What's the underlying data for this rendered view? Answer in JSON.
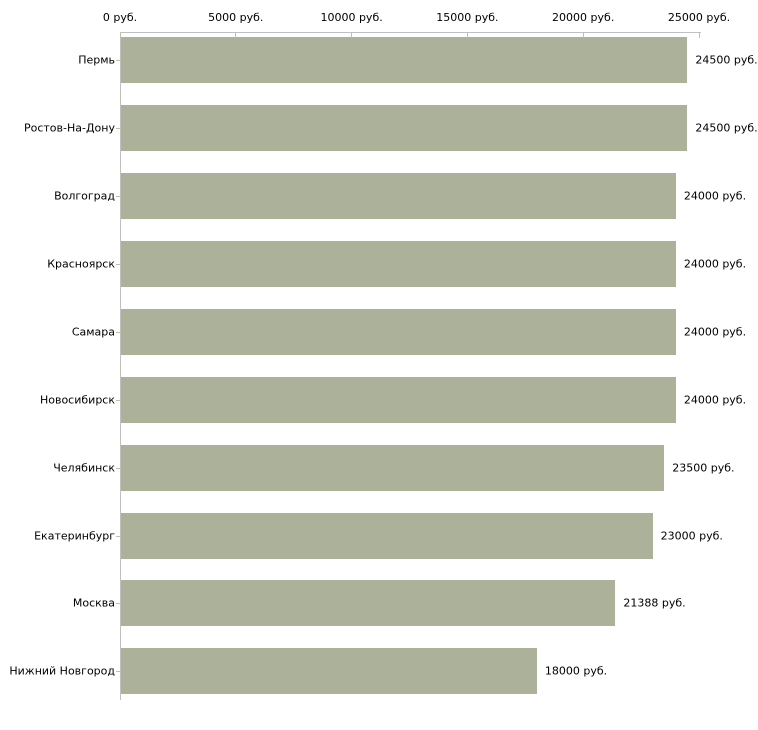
{
  "chart_data": {
    "type": "bar",
    "orientation": "horizontal",
    "title": "",
    "xlabel": "",
    "ylabel": "",
    "grid": false,
    "legend": false,
    "categories": [
      "Пермь",
      "Ростов-На-Дону",
      "Волгоград",
      "Красноярск",
      "Самара",
      "Новосибирск",
      "Челябинск",
      "Екатеринбург",
      "Москва",
      "Нижний Новгород"
    ],
    "values": [
      24500,
      24500,
      24000,
      24000,
      24000,
      24000,
      23500,
      23000,
      21388,
      18000
    ],
    "value_labels": [
      "24500 руб.",
      "24500 руб.",
      "24000 руб.",
      "24000 руб.",
      "24000 руб.",
      "24000 руб.",
      "23500 руб.",
      "23000 руб.",
      "21388 руб.",
      "18000 руб."
    ],
    "x_axis": {
      "position": "top",
      "range": [
        0,
        25000
      ],
      "ticks": [
        0,
        5000,
        10000,
        15000,
        20000,
        25000
      ],
      "tick_labels": [
        "0 руб.",
        "5000 руб.",
        "10000 руб.",
        "15000 руб.",
        "20000 руб.",
        "25000 руб."
      ]
    },
    "colors": {
      "bar": "#acb29a",
      "axis_line": "#c0c0c0",
      "tick": "#c2c2a2",
      "text": "#000000",
      "background": "#ffffff"
    }
  }
}
